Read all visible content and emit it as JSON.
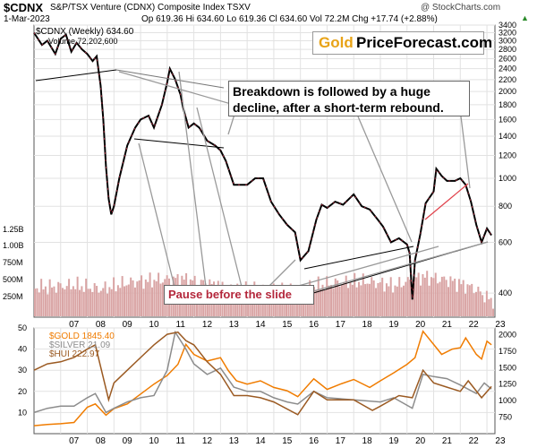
{
  "header": {
    "symbol": "$CDNX",
    "name": "S&P/TSX Venture (CDNX) Composite Index  TSXV",
    "date": "1-Mar-2023",
    "stats": "Op 619.36  Hi 634.60  Lo 619.36  Cl 634.60  Vol 72.2M  Chg +17.74 (+2.88%)",
    "stats_arrow": "▲",
    "watermark": "@ StockCharts.com"
  },
  "logo": {
    "part1": "Gold",
    "part2": "PriceForecast.com"
  },
  "legend_main": {
    "line1": "$CDNX (Weekly) 634.60",
    "line2": "Volume 72,202,600"
  },
  "legend_lower": [
    {
      "label": "$GOLD 1845.40",
      "color": "#f07c00"
    },
    {
      "label": "$SILVER 21.09",
      "color": "#8c8c8c"
    },
    {
      "label": "$HUI 222.97",
      "color": "#9b5a22"
    }
  ],
  "annotations": {
    "breakdown": "Breakdown is followed by a huge decline, after a short-term rebound.",
    "pause": "Pause before the slide"
  },
  "colors": {
    "accent_red": "#b4283c",
    "gold": "#f07c00",
    "silver": "#8c8c8c",
    "hui": "#9b5a22",
    "volume": "#d9a4a4",
    "grid": "#e2e2e2",
    "trend_red": "#e0404a"
  },
  "chart_data": [
    {
      "type": "line",
      "title": "$CDNX",
      "scale": "log",
      "ylim": [
        330,
        3400
      ],
      "xlim": [
        2006.0,
        2023.3
      ],
      "yticks": [
        400,
        600,
        800,
        1000,
        1200,
        1400,
        1600,
        1800,
        2000,
        2200,
        2400,
        2600,
        2800,
        3000,
        3200,
        3400
      ],
      "volume_ticks": [
        "1.25B",
        "1.00B",
        "750M",
        "500M",
        "250M"
      ],
      "xticks": [
        "07",
        "08",
        "09",
        "10",
        "11",
        "12",
        "13",
        "14",
        "15",
        "16",
        "17",
        "18",
        "19",
        "20",
        "21",
        "22",
        "23"
      ],
      "series": [
        {
          "name": "$CDNX (Weekly)",
          "x": [
            2006.0,
            2006.3,
            2006.5,
            2006.8,
            2007.0,
            2007.2,
            2007.4,
            2007.6,
            2007.8,
            2008.0,
            2008.2,
            2008.35,
            2008.5,
            2008.6,
            2008.7,
            2008.8,
            2008.9,
            2009.0,
            2009.2,
            2009.5,
            2009.8,
            2010.0,
            2010.3,
            2010.5,
            2010.8,
            2011.0,
            2011.1,
            2011.3,
            2011.5,
            2011.6,
            2011.8,
            2012.0,
            2012.2,
            2012.5,
            2012.8,
            2013.0,
            2013.2,
            2013.5,
            2013.7,
            2014.0,
            2014.3,
            2014.6,
            2014.9,
            2015.2,
            2015.5,
            2015.8,
            2016.0,
            2016.3,
            2016.6,
            2016.8,
            2017.0,
            2017.3,
            2017.6,
            2018.0,
            2018.3,
            2018.6,
            2018.9,
            2019.1,
            2019.4,
            2019.7,
            2020.0,
            2020.1,
            2020.2,
            2020.3,
            2020.5,
            2020.7,
            2021.0,
            2021.1,
            2021.3,
            2021.5,
            2021.8,
            2022.0,
            2022.2,
            2022.4,
            2022.6,
            2022.8,
            2023.0,
            2023.17
          ],
          "values": [
            3200,
            2900,
            3000,
            2700,
            3050,
            3150,
            2750,
            2950,
            2800,
            2700,
            2550,
            2650,
            2100,
            1600,
            1100,
            850,
            750,
            800,
            1000,
            1300,
            1500,
            1600,
            1650,
            1500,
            1800,
            2150,
            2400,
            2200,
            1950,
            1750,
            1500,
            1550,
            1500,
            1350,
            1300,
            1250,
            1150,
            950,
            950,
            950,
            1000,
            1000,
            830,
            750,
            690,
            650,
            520,
            560,
            720,
            810,
            790,
            830,
            810,
            880,
            800,
            780,
            720,
            680,
            600,
            620,
            590,
            550,
            380,
            520,
            640,
            820,
            900,
            1080,
            1020,
            980,
            980,
            1000,
            950,
            830,
            690,
            600,
            670,
            634.6
          ]
        }
      ],
      "volume": {
        "x": [
          2006.5,
          2007.5,
          2008.5,
          2009.5,
          2010.5,
          2011.5,
          2012.5,
          2013.5,
          2014.5,
          2015.5,
          2016.5,
          2017.5,
          2018.5,
          2019.5,
          2020.5,
          2021.5,
          2022.5,
          2023.1
        ],
        "values": [
          450,
          480,
          420,
          520,
          560,
          580,
          500,
          430,
          440,
          380,
          470,
          520,
          540,
          470,
          610,
          560,
          430,
          250
        ]
      }
    },
    {
      "type": "line",
      "scale": "linear",
      "left_axis": {
        "ylim": [
          0,
          50
        ],
        "ticks": [
          10,
          20,
          30,
          40,
          50
        ]
      },
      "right_axis": {
        "ylim": [
          500,
          2100
        ],
        "ticks": [
          750,
          1000,
          1250,
          1500,
          1750,
          2000
        ]
      },
      "xticks": [
        "07",
        "08",
        "09",
        "10",
        "11",
        "12",
        "13",
        "14",
        "15",
        "16",
        "17",
        "18",
        "19",
        "20",
        "21",
        "22",
        "23"
      ],
      "series": [
        {
          "name": "$GOLD",
          "axis": "right",
          "x": [
            2006.0,
            2006.5,
            2007.0,
            2007.5,
            2008.0,
            2008.3,
            2008.7,
            2009.0,
            2009.5,
            2010.0,
            2010.5,
            2011.0,
            2011.4,
            2011.7,
            2012.0,
            2012.5,
            2013.0,
            2013.3,
            2013.6,
            2014.0,
            2014.5,
            2015.0,
            2015.5,
            2015.9,
            2016.5,
            2017.0,
            2017.5,
            2018.0,
            2018.6,
            2019.0,
            2019.5,
            2020.0,
            2020.3,
            2020.6,
            2021.0,
            2021.3,
            2021.7,
            2022.0,
            2022.2,
            2022.6,
            2022.8,
            2023.0,
            2023.17
          ],
          "values": [
            620,
            640,
            650,
            670,
            900,
            950,
            780,
            880,
            950,
            1100,
            1250,
            1380,
            1550,
            1850,
            1700,
            1600,
            1650,
            1450,
            1300,
            1250,
            1300,
            1200,
            1150,
            1060,
            1330,
            1170,
            1250,
            1320,
            1200,
            1300,
            1420,
            1550,
            1650,
            2050,
            1850,
            1700,
            1780,
            1800,
            1950,
            1700,
            1630,
            1900,
            1845.4
          ]
        },
        {
          "name": "$SILVER",
          "axis": "left",
          "x": [
            2006.0,
            2006.5,
            2007.0,
            2007.5,
            2008.0,
            2008.3,
            2008.7,
            2009.0,
            2009.5,
            2010.0,
            2010.5,
            2011.0,
            2011.3,
            2011.7,
            2012.0,
            2012.5,
            2013.0,
            2013.5,
            2014.0,
            2014.5,
            2015.0,
            2015.5,
            2015.9,
            2016.5,
            2017.0,
            2018.0,
            2019.0,
            2019.5,
            2020.2,
            2020.6,
            2021.0,
            2021.5,
            2022.0,
            2022.6,
            2022.9,
            2023.17
          ],
          "values": [
            10,
            12,
            13,
            13,
            17,
            19,
            10,
            12,
            15,
            17,
            18,
            30,
            48,
            40,
            33,
            28,
            31,
            22,
            20,
            20,
            17,
            15,
            14,
            20,
            17,
            16,
            15,
            17,
            12,
            28,
            27,
            26,
            23,
            19,
            24,
            21.09
          ]
        },
        {
          "name": "$HUI",
          "axis": "left",
          "x": [
            2006.0,
            2006.5,
            2007.0,
            2007.5,
            2008.0,
            2008.3,
            2008.8,
            2009.0,
            2009.5,
            2010.0,
            2010.5,
            2011.0,
            2011.4,
            2011.7,
            2012.0,
            2012.5,
            2013.0,
            2013.5,
            2014.0,
            2014.5,
            2015.0,
            2015.9,
            2016.5,
            2017.0,
            2018.0,
            2018.7,
            2019.0,
            2019.7,
            2020.2,
            2020.6,
            2021.0,
            2021.5,
            2022.0,
            2022.3,
            2022.8,
            2023.17
          ],
          "values": [
            30,
            33,
            34,
            36,
            40,
            42,
            16,
            24,
            30,
            36,
            42,
            47,
            48,
            44,
            42,
            34,
            28,
            18,
            18,
            17,
            15,
            9,
            20,
            16,
            16,
            11,
            13,
            18,
            17,
            30,
            24,
            22,
            20,
            25,
            17,
            22.3
          ]
        }
      ]
    }
  ]
}
